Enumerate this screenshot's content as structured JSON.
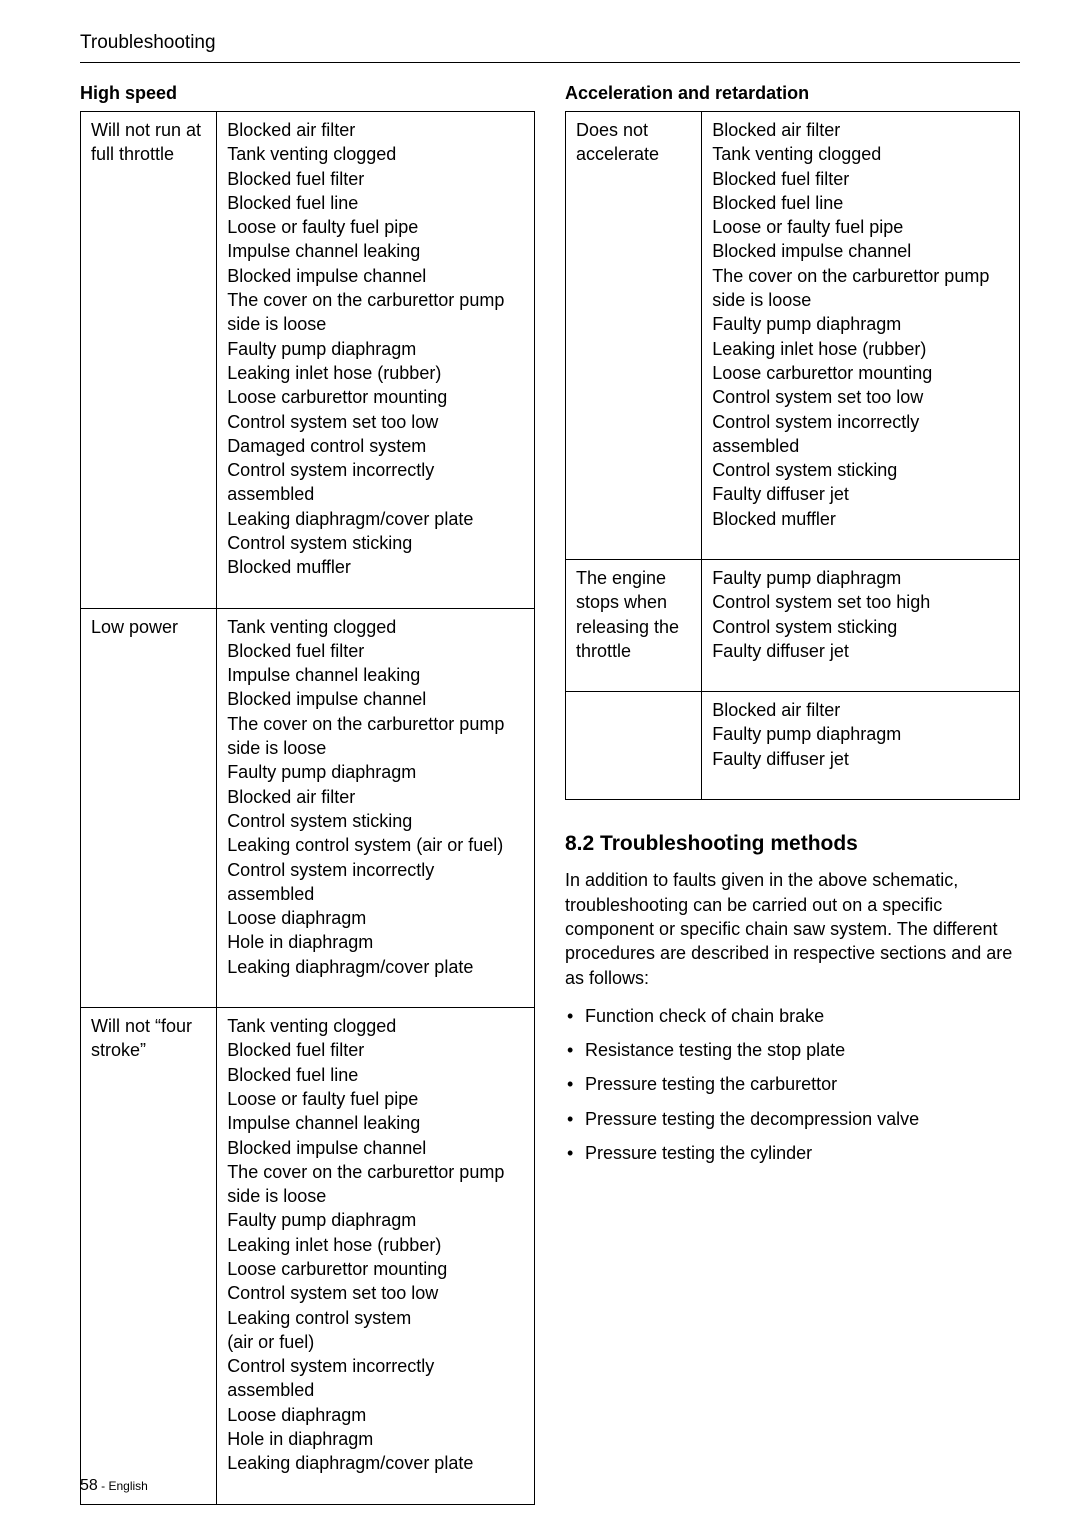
{
  "page_header": "Troubleshooting",
  "left": {
    "heading": "High speed",
    "rows": [
      {
        "symptom": "Will not run at full throttle",
        "causes": "Blocked air filter\nTank venting clogged\nBlocked fuel filter\nBlocked fuel line\nLoose or faulty fuel pipe\nImpulse channel leaking\nBlocked impulse channel\nThe cover on the carburettor pump side is loose\nFaulty pump diaphragm\nLeaking inlet hose (rubber)\nLoose carburettor mounting\nControl system set too low\nDamaged control system\nControl system incorrectly assembled\nLeaking diaphragm/cover plate\nControl system sticking\nBlocked muffler"
      },
      {
        "symptom": "Low power",
        "causes": "Tank venting clogged\nBlocked fuel filter\nImpulse channel leaking\nBlocked impulse channel\nThe cover on the carburettor pump side is loose\nFaulty pump diaphragm\nBlocked air filter\nControl system sticking\nLeaking control system (air or fuel)\nControl system incorrectly assembled\nLoose diaphragm\nHole in diaphragm\nLeaking diaphragm/cover plate"
      },
      {
        "symptom": "Will not “four stroke”",
        "causes": "Tank venting clogged\nBlocked fuel filter\nBlocked fuel line\nLoose or faulty fuel pipe\nImpulse channel leaking\nBlocked impulse channel\nThe cover on the carburettor pump side is loose\nFaulty pump diaphragm\nLeaking inlet hose (rubber)\nLoose carburettor mounting\nControl system set too low\nLeaking control system\n(air or fuel)\nControl system incorrectly assembled\nLoose diaphragm\nHole in diaphragm\nLeaking diaphragm/cover plate"
      }
    ]
  },
  "right": {
    "heading": "Acceleration and retardation",
    "rows": [
      {
        "symptom": "Does not accelerate",
        "causes": "Blocked air filter\nTank venting clogged\nBlocked fuel filter\nBlocked fuel line\nLoose or faulty fuel pipe\nBlocked impulse channel\nThe cover on the carburettor pump side is loose\nFaulty pump diaphragm\nLeaking inlet hose (rubber)\nLoose carburettor mounting\nControl system set too low\nControl system incorrectly assembled\nControl system sticking\nFaulty diffuser jet\nBlocked muffler"
      },
      {
        "symptom": "The engine stops when releasing the throttle",
        "causes": "Faulty pump diaphragm\nControl system set too high\nControl system sticking\nFaulty diffuser jet"
      },
      {
        "symptom": "",
        "causes": "Blocked air filter\nFaulty pump diaphragm\nFaulty diffuser jet"
      }
    ],
    "subsection_title": "8.2 Troubleshooting methods",
    "subsection_para": "In addition to faults given in the above schematic, troubleshooting can be carried out on a specific component or specific chain saw system. The different procedures are described in respective sections and are as follows:",
    "bullets": [
      "Function check of chain brake",
      "Resistance testing the stop plate",
      "Pressure testing the carburettor",
      "Pressure testing the decompression valve",
      "Pressure testing the cylinder"
    ]
  },
  "footer_number": "58",
  "footer_dash": " - ",
  "footer_lang": "English"
}
